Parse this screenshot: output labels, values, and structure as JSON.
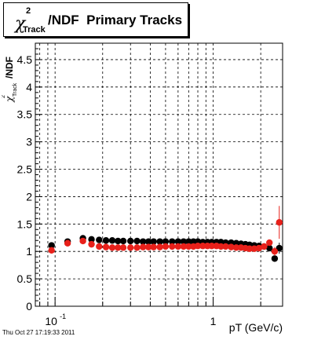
{
  "title": {
    "chi": "χ",
    "superscript": "2",
    "subscript": "Track",
    "main": "/NDF  Primary Tracks"
  },
  "footer": {
    "timestamp": "Thu Oct 27 17:19:33 2011"
  },
  "chart_data": {
    "type": "scatter",
    "title": "χ²_Track/NDF  Primary Tracks",
    "xlabel": "pT (GeV/c)",
    "ylabel": "χ²_Track/NDF",
    "xscale": "log",
    "xlim": [
      0.075,
      2.75
    ],
    "ylim": [
      0,
      4.8
    ],
    "grid": true,
    "x_ticks": [
      {
        "value": 0.1,
        "label": "10",
        "exp": "-1"
      },
      {
        "value": 1,
        "label": "1",
        "exp": ""
      }
    ],
    "y_ticks": [
      "0",
      "0.5",
      "1",
      "1.5",
      "2",
      "2.5",
      "3",
      "3.5",
      "4",
      "4.5"
    ],
    "colors": {
      "series_black": "#000000",
      "series_red": "#e8201a"
    },
    "series": [
      {
        "color": "#000000",
        "points": [
          {
            "x": 0.095,
            "y": 1.11
          },
          {
            "x": 0.12,
            "y": 1.18
          },
          {
            "x": 0.15,
            "y": 1.24
          },
          {
            "x": 0.17,
            "y": 1.22
          },
          {
            "x": 0.19,
            "y": 1.21
          },
          {
            "x": 0.21,
            "y": 1.2
          },
          {
            "x": 0.23,
            "y": 1.2
          },
          {
            "x": 0.25,
            "y": 1.19
          },
          {
            "x": 0.27,
            "y": 1.19
          },
          {
            "x": 0.3,
            "y": 1.19
          },
          {
            "x": 0.33,
            "y": 1.19
          },
          {
            "x": 0.36,
            "y": 1.18
          },
          {
            "x": 0.39,
            "y": 1.18
          },
          {
            "x": 0.42,
            "y": 1.18
          },
          {
            "x": 0.46,
            "y": 1.18
          },
          {
            "x": 0.5,
            "y": 1.18
          },
          {
            "x": 0.55,
            "y": 1.18
          },
          {
            "x": 0.6,
            "y": 1.18
          },
          {
            "x": 0.65,
            "y": 1.18
          },
          {
            "x": 0.7,
            "y": 1.18
          },
          {
            "x": 0.75,
            "y": 1.18
          },
          {
            "x": 0.8,
            "y": 1.18
          },
          {
            "x": 0.86,
            "y": 1.17
          },
          {
            "x": 0.92,
            "y": 1.17
          },
          {
            "x": 0.98,
            "y": 1.17
          },
          {
            "x": 1.05,
            "y": 1.17
          },
          {
            "x": 1.12,
            "y": 1.17
          },
          {
            "x": 1.2,
            "y": 1.16
          },
          {
            "x": 1.3,
            "y": 1.16
          },
          {
            "x": 1.4,
            "y": 1.15
          },
          {
            "x": 1.5,
            "y": 1.14
          },
          {
            "x": 1.6,
            "y": 1.13
          },
          {
            "x": 1.7,
            "y": 1.12
          },
          {
            "x": 1.82,
            "y": 1.11
          },
          {
            "x": 1.95,
            "y": 1.1
          },
          {
            "x": 2.1,
            "y": 1.09
          },
          {
            "x": 2.27,
            "y": 1.06
          },
          {
            "x": 2.45,
            "y": 0.87,
            "err": 0.06
          },
          {
            "x": 2.62,
            "y": 1.06,
            "err": 0.1
          }
        ]
      },
      {
        "color": "#e8201a",
        "points": [
          {
            "x": 0.095,
            "y": 1.02
          },
          {
            "x": 0.12,
            "y": 1.15
          },
          {
            "x": 0.15,
            "y": 1.19
          },
          {
            "x": 0.17,
            "y": 1.13
          },
          {
            "x": 0.19,
            "y": 1.09
          },
          {
            "x": 0.21,
            "y": 1.08
          },
          {
            "x": 0.23,
            "y": 1.07
          },
          {
            "x": 0.25,
            "y": 1.07
          },
          {
            "x": 0.27,
            "y": 1.07
          },
          {
            "x": 0.3,
            "y": 1.07
          },
          {
            "x": 0.33,
            "y": 1.07
          },
          {
            "x": 0.36,
            "y": 1.08
          },
          {
            "x": 0.39,
            "y": 1.08
          },
          {
            "x": 0.42,
            "y": 1.08
          },
          {
            "x": 0.46,
            "y": 1.08
          },
          {
            "x": 0.5,
            "y": 1.09
          },
          {
            "x": 0.55,
            "y": 1.09
          },
          {
            "x": 0.6,
            "y": 1.09
          },
          {
            "x": 0.65,
            "y": 1.09
          },
          {
            "x": 0.7,
            "y": 1.09
          },
          {
            "x": 0.75,
            "y": 1.09
          },
          {
            "x": 0.8,
            "y": 1.1
          },
          {
            "x": 0.86,
            "y": 1.1
          },
          {
            "x": 0.92,
            "y": 1.1
          },
          {
            "x": 0.98,
            "y": 1.1
          },
          {
            "x": 1.05,
            "y": 1.1
          },
          {
            "x": 1.12,
            "y": 1.09
          },
          {
            "x": 1.2,
            "y": 1.09
          },
          {
            "x": 1.3,
            "y": 1.08
          },
          {
            "x": 1.4,
            "y": 1.07
          },
          {
            "x": 1.5,
            "y": 1.07
          },
          {
            "x": 1.6,
            "y": 1.06
          },
          {
            "x": 1.7,
            "y": 1.05
          },
          {
            "x": 1.82,
            "y": 1.05
          },
          {
            "x": 1.95,
            "y": 1.06
          },
          {
            "x": 2.1,
            "y": 1.09
          },
          {
            "x": 2.27,
            "y": 1.16
          },
          {
            "x": 2.45,
            "y": 1.0,
            "err": 0.08
          },
          {
            "x": 2.62,
            "y": 1.53,
            "err": 0.3
          }
        ]
      }
    ]
  }
}
